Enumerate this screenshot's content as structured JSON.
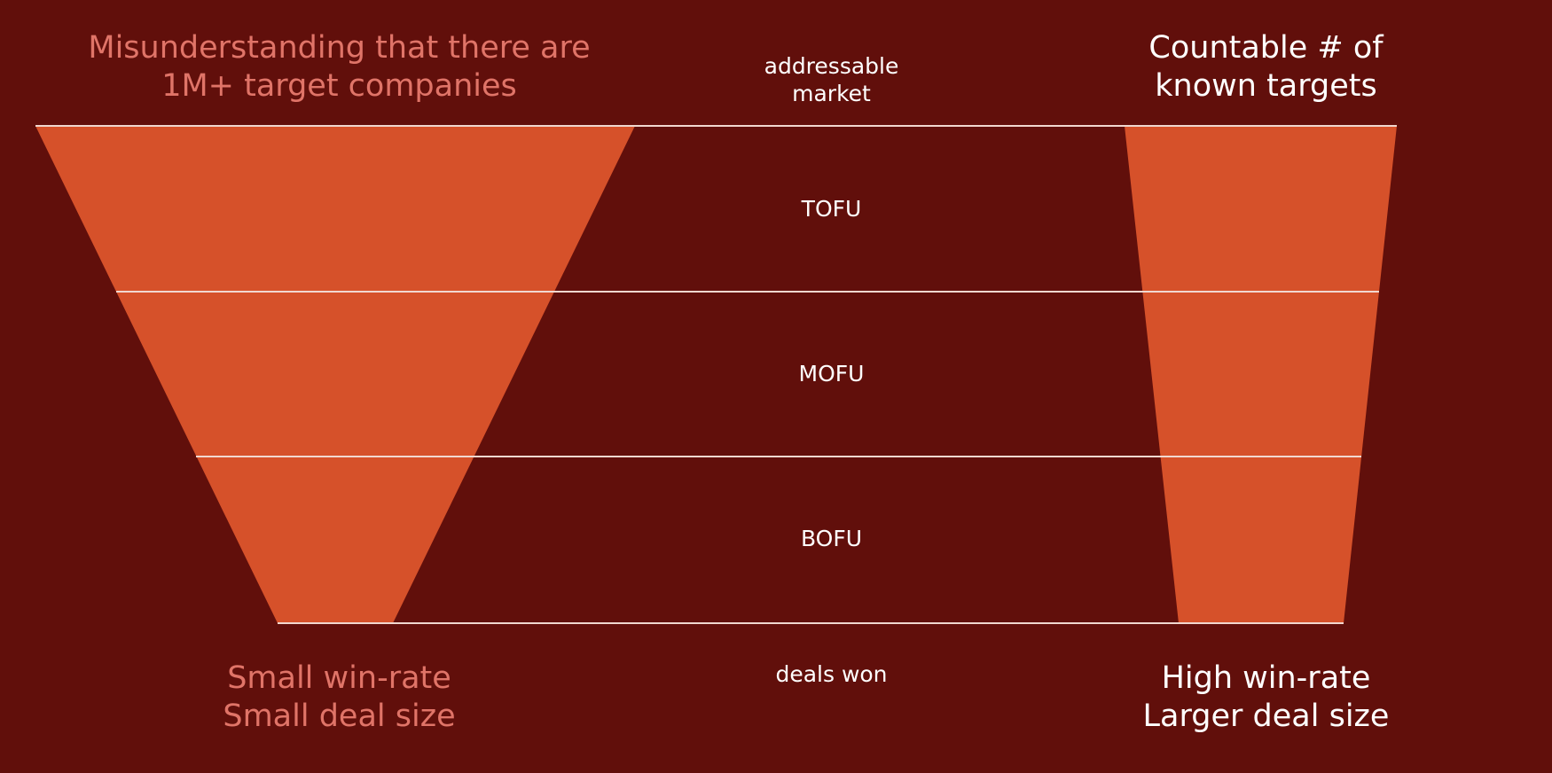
{
  "colors": {
    "background": "#610f0b",
    "funnel_fill": "#d6512a",
    "divider_line": "#f1d8d0",
    "muted_text": "#e07468",
    "bright_text": "#ffffff"
  },
  "left_funnel": {
    "title_lines": [
      "Misunderstanding that there are",
      "1M+ target companies"
    ],
    "bottom_lines": [
      "Small win-rate",
      "Small deal size"
    ]
  },
  "right_funnel": {
    "title_lines": [
      "Countable # of",
      "known targets"
    ],
    "bottom_lines": [
      "High win-rate",
      "Larger deal size"
    ]
  },
  "stages": {
    "top": [
      "addressable",
      "market"
    ],
    "tofu": "TOFU",
    "mofu": "MOFU",
    "bofu": "BOFU",
    "bottom": "deals won"
  }
}
